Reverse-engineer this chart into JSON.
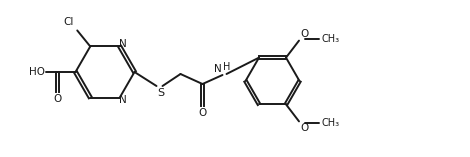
{
  "background_color": "#ffffff",
  "line_color": "#1a1a1a",
  "line_width": 1.4,
  "figsize": [
    4.7,
    1.57
  ],
  "dpi": 100,
  "xlim": [
    0,
    4.7
  ],
  "ylim": [
    0,
    1.57
  ]
}
